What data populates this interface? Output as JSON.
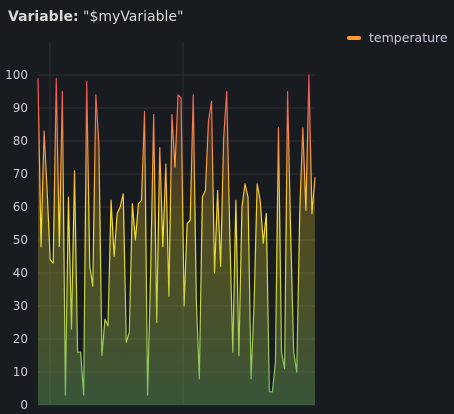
{
  "panel": {
    "title_label": "Variable:",
    "title_value": "\"$myVariable\""
  },
  "colors": {
    "background": "#181b1f",
    "grid": "#2c3035",
    "legend_swatch": "#ff9830",
    "gradient_low": "#73bf69",
    "gradient_mid": "#fade2a",
    "gradient_high": "#f2495c"
  },
  "chart_data": {
    "type": "area",
    "title": "",
    "xlabel": "",
    "ylabel": "",
    "ylim": [
      0,
      100
    ],
    "yticks": [
      0,
      10,
      20,
      30,
      40,
      50,
      60,
      70,
      80,
      90,
      100
    ],
    "grid": true,
    "legend_position": "top-right",
    "series": [
      {
        "name": "temperature",
        "values": [
          99,
          48,
          83,
          65,
          44,
          43,
          99,
          48,
          95,
          3,
          63,
          23,
          71,
          16,
          16,
          3,
          98,
          42,
          36,
          94,
          79,
          15,
          26,
          24,
          62,
          45,
          58,
          60,
          64,
          19,
          22,
          61,
          50,
          61,
          62,
          89,
          3,
          40,
          88,
          25,
          78,
          48,
          73,
          33,
          88,
          72,
          94,
          93,
          30,
          55,
          56,
          94,
          32,
          8,
          63,
          65,
          86,
          92,
          40,
          65,
          42,
          81,
          95,
          52,
          16,
          62,
          15,
          60,
          67,
          63,
          8,
          31,
          67,
          62,
          49,
          58,
          4,
          4,
          13,
          84,
          16,
          11,
          95,
          52,
          16,
          10,
          59,
          84,
          59,
          100,
          58,
          69
        ]
      }
    ]
  }
}
